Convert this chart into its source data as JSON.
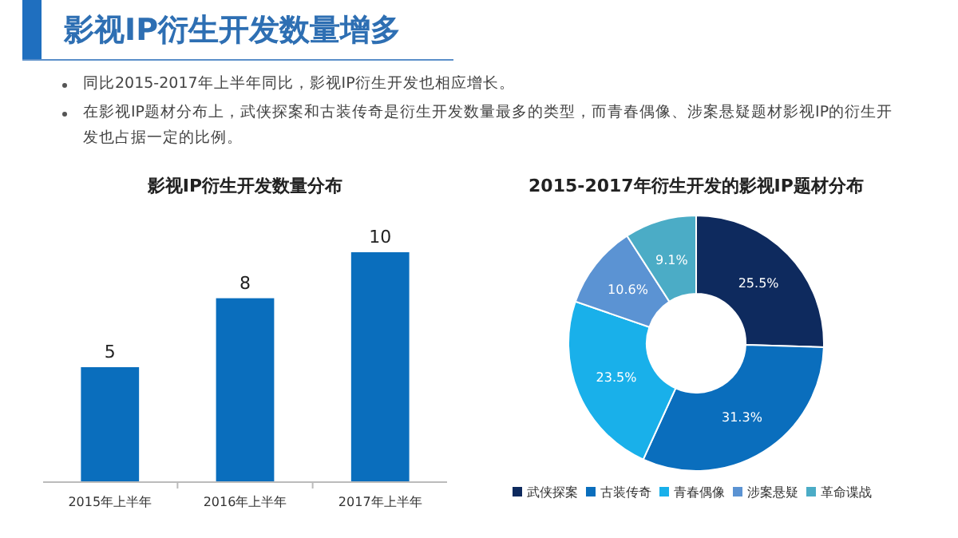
{
  "chart_data": [
    {
      "type": "other",
      "title": "影视IP衍生开发数量增多",
      "annotations": [
        "同比2015-2017年上半年同比，影视IP衍生开发也相应增长。",
        "在影视IP题材分布上，武侠探案和古装传奇是衍生开发数量最多的类型，而青春偶像、涉案悬疑题材影视IP的衍生开发也占据一定的比例。"
      ]
    },
    {
      "type": "bar",
      "title": "影视IP衍生开发数量分布",
      "categories": [
        "2015年上半年",
        "2016年上半年",
        "2017年上半年"
      ],
      "values": [
        5,
        8,
        10
      ],
      "color": "#0a6ebd",
      "data_labels": true
    },
    {
      "type": "donut",
      "title": "2015-2017年衍生开发的影视IP题材分布",
      "categories": [
        "武侠探案",
        "古装传奇",
        "青春偶像",
        "涉案悬疑",
        "革命谍战"
      ],
      "values": [
        25.5,
        31.3,
        23.5,
        10.6,
        9.1
      ],
      "colors": [
        "#0e2a5e",
        "#0a6ebd",
        "#19b0ea",
        "#5b93d3",
        "#4bacc6"
      ],
      "value_labels": [
        "25.5%",
        "31.3%",
        "23.5%",
        "10.6%",
        "9.1%"
      ],
      "legend": "bottom"
    }
  ]
}
